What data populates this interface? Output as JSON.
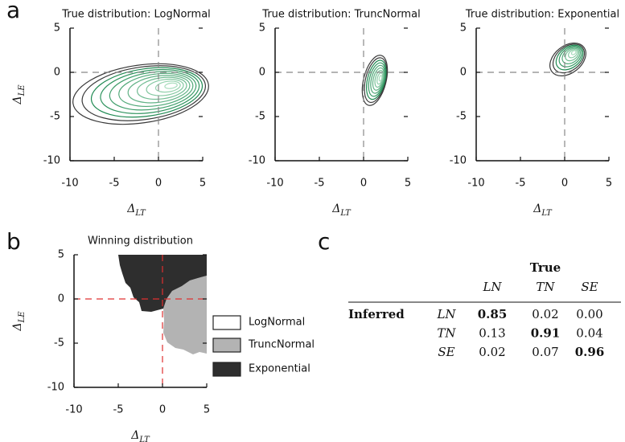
{
  "panel_labels": [
    "a",
    "b",
    "c"
  ],
  "chart_data": [
    {
      "type": "contour",
      "title": "True distribution: LogNormal",
      "x_label": "ΔLT",
      "y_label": "ΔLE",
      "xlim": [
        -10,
        5
      ],
      "ylim": [
        -10,
        5
      ],
      "xticks": [
        -10,
        -5,
        0,
        5
      ],
      "yticks": [
        -10,
        -5,
        0,
        5
      ],
      "ref_x": 0,
      "ref_y": 0,
      "ref_color": "#888888",
      "contour_colors": [
        "#3a3a3a",
        "#1f8a52",
        "#a6dcbb"
      ]
    },
    {
      "type": "contour",
      "title": "True distribution: TruncNormal",
      "x_label": "ΔLT",
      "xlim": [
        -10,
        5
      ],
      "ylim": [
        -10,
        5
      ],
      "xticks": [
        -10,
        -5,
        0,
        5
      ],
      "yticks": [
        -10,
        -5,
        0,
        5
      ],
      "ref_x": 0,
      "ref_y": 0,
      "ref_color": "#888888",
      "contour_colors": [
        "#3a3a3a",
        "#1f8a52",
        "#a6dcbb"
      ]
    },
    {
      "type": "contour",
      "title": "True distribution: Exponential",
      "x_label": "ΔLT",
      "xlim": [
        -10,
        5
      ],
      "ylim": [
        -10,
        5
      ],
      "xticks": [
        -10,
        -5,
        0,
        5
      ],
      "yticks": [
        -10,
        -5,
        0,
        5
      ],
      "ref_x": 0,
      "ref_y": 0,
      "ref_color": "#888888",
      "contour_colors": [
        "#3a3a3a",
        "#1f8a52",
        "#a6dcbb"
      ]
    },
    {
      "type": "region",
      "title": "Winning distribution",
      "x_label": "ΔLT",
      "y_label": "ΔLE",
      "xlim": [
        -10,
        5
      ],
      "ylim": [
        -10,
        5
      ],
      "xticks": [
        -10,
        -5,
        0,
        5
      ],
      "yticks": [
        -10,
        -5,
        0,
        5
      ],
      "ref_x": 0,
      "ref_y": 0,
      "ref_color": "#e03030",
      "legend": "right",
      "series": [
        {
          "name": "LogNormal",
          "color": "#ffffff"
        },
        {
          "name": "TruncNormal",
          "color": "#b3b3b3"
        },
        {
          "name": "Exponential",
          "color": "#2e2e2e"
        }
      ]
    }
  ],
  "table": {
    "header_group": "True",
    "columns": [
      "LN",
      "TN",
      "SE"
    ],
    "row_group": "Inferred",
    "rows": [
      [
        "LN",
        "0.85",
        "0.02",
        "0.00"
      ],
      [
        "TN",
        "0.13",
        "0.91",
        "0.04"
      ],
      [
        "SE",
        "0.02",
        "0.07",
        "0.96"
      ]
    ],
    "bold": [
      [
        0,
        1
      ],
      [
        1,
        2
      ],
      [
        2,
        3
      ]
    ]
  }
}
